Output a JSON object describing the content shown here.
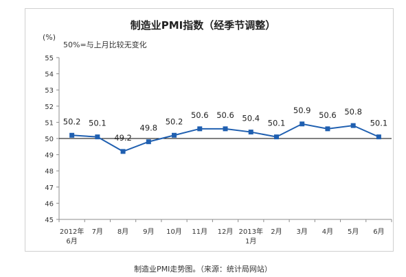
{
  "chart_data": {
    "type": "line",
    "title": "制造业PMI指数（经季节调整）",
    "unit_label": "(%)",
    "annotation": "50%=与上月比较无变化",
    "categories": [
      [
        "2012年",
        "6月"
      ],
      [
        "7月"
      ],
      [
        "8月"
      ],
      [
        "9月"
      ],
      [
        "10月"
      ],
      [
        "11月"
      ],
      [
        "12月"
      ],
      [
        "2013年",
        "1月"
      ],
      [
        "2月"
      ],
      [
        "3月"
      ],
      [
        "4月"
      ],
      [
        "5月"
      ],
      [
        "6月"
      ]
    ],
    "series": [
      {
        "values": [
          50.2,
          50.1,
          49.2,
          49.8,
          50.2,
          50.6,
          50.6,
          50.4,
          50.1,
          50.9,
          50.6,
          50.8,
          50.1
        ],
        "color": "#1f5fb0"
      }
    ],
    "y_ticks": [
      45,
      46,
      47,
      48,
      49,
      50,
      51,
      52,
      53,
      54,
      55
    ],
    "ylim": [
      45,
      55
    ],
    "reference_line": 50,
    "grid": false,
    "legend": "none"
  },
  "caption": "制造业PMI走势图。（来源：统计局网站）"
}
